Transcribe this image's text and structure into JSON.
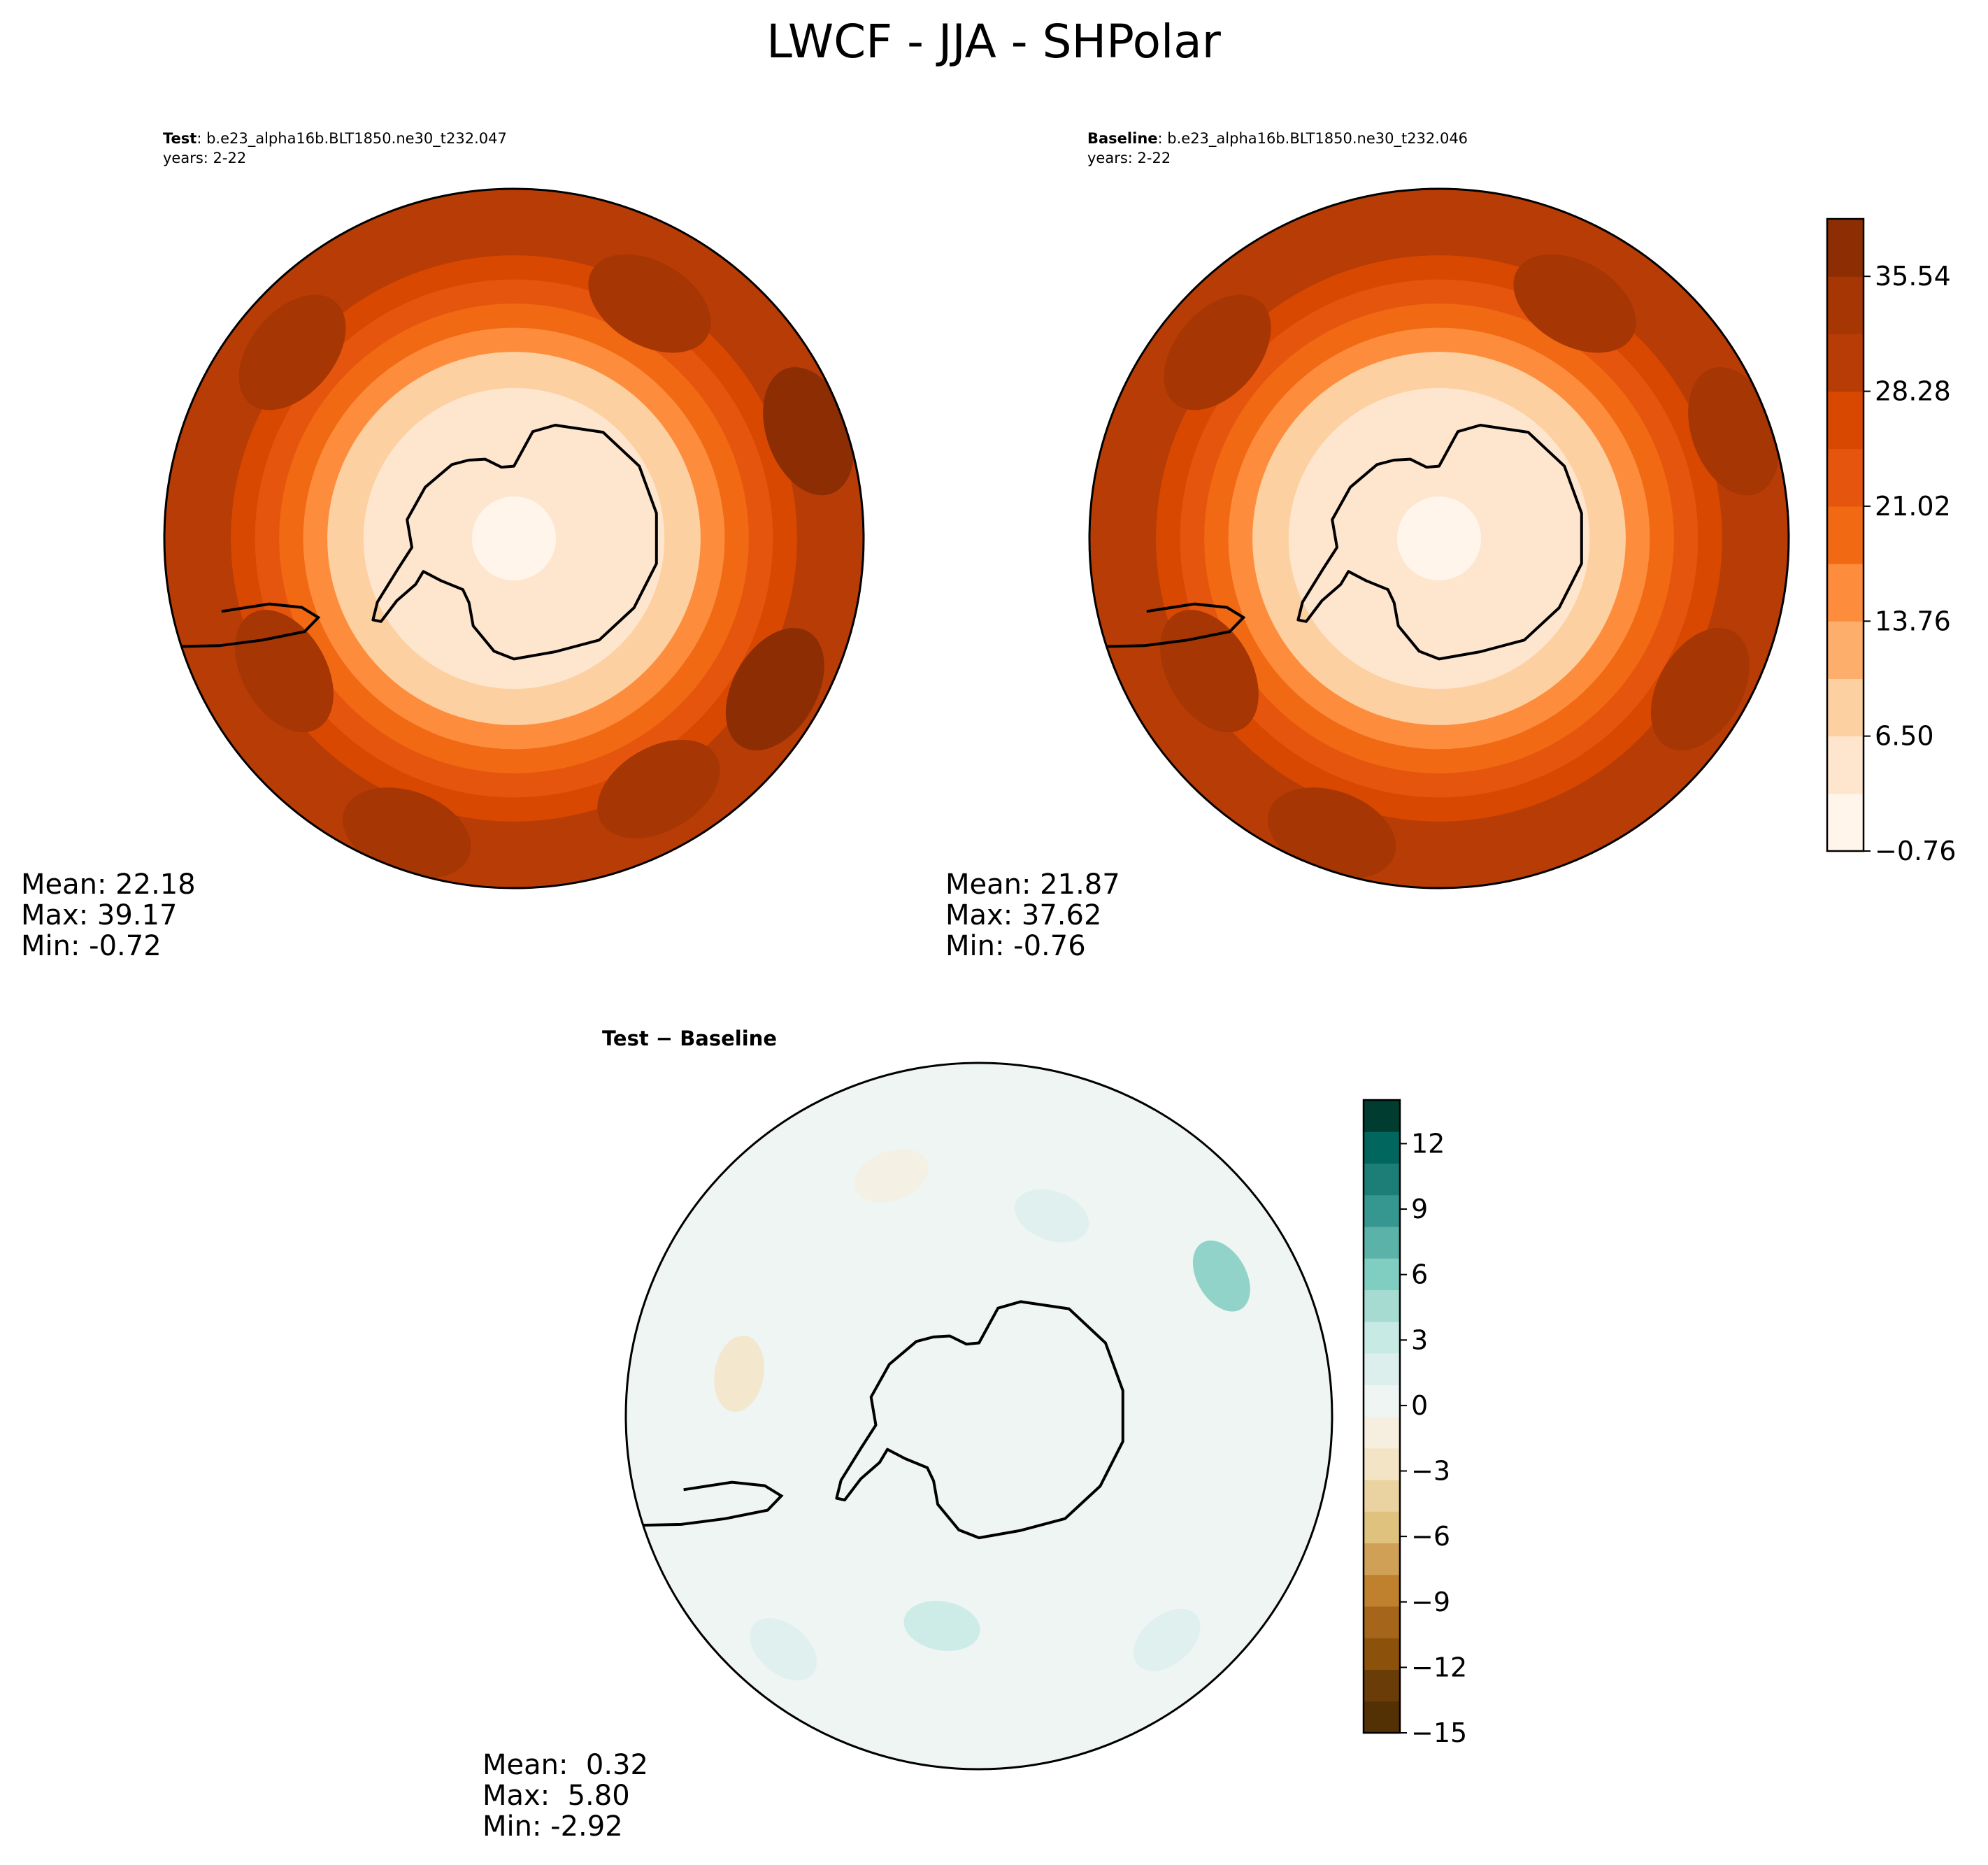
{
  "title": "LWCF - JJA - SHPolar",
  "chart_data": [
    {
      "type": "heatmap",
      "projection": "south-polar-stereographic",
      "panel": "test",
      "title_bold": "Test",
      "title_rest": ": b.e23_alpha16b.BLT1850.ne30_t232.047",
      "years": "years: 2-22",
      "stats": {
        "mean": "Mean: 22.18",
        "max": "Max: 39.17",
        "min": "Min: -0.72"
      },
      "zones": [
        {
          "lat": -90,
          "value": 1
        },
        {
          "lat": -80,
          "value": 3
        },
        {
          "lat": -72,
          "value": 6
        },
        {
          "lat": -66,
          "value": 10
        },
        {
          "lat": -62,
          "value": 14
        },
        {
          "lat": -58,
          "value": 18
        },
        {
          "lat": -54,
          "value": 23
        },
        {
          "lat": -50,
          "value": 27
        },
        {
          "lat": -45,
          "value": 30
        },
        {
          "lat": -40,
          "value": 31
        },
        {
          "lat": -35,
          "value": 31
        }
      ],
      "blobs": [
        {
          "lon": 60,
          "lat": -40,
          "value": 36
        },
        {
          "lon": -20,
          "lat": -38,
          "value": 35
        },
        {
          "lon": 150,
          "lat": -45,
          "value": 34
        },
        {
          "lon": -130,
          "lat": -42,
          "value": 33
        },
        {
          "lon": 110,
          "lat": -38,
          "value": 38
        },
        {
          "lon": -60,
          "lat": -46,
          "value": 34
        },
        {
          "lon": 30,
          "lat": -42,
          "value": 33
        }
      ]
    },
    {
      "type": "heatmap",
      "projection": "south-polar-stereographic",
      "panel": "baseline",
      "title_bold": "Baseline",
      "title_rest": ": b.e23_alpha16b.BLT1850.ne30_t232.046",
      "years": "years: 2-22",
      "stats": {
        "mean": "Mean: 21.87",
        "max": "Max: 37.62",
        "min": "Min: -0.76"
      },
      "zones": [
        {
          "lat": -90,
          "value": 1
        },
        {
          "lat": -80,
          "value": 3
        },
        {
          "lat": -72,
          "value": 6
        },
        {
          "lat": -66,
          "value": 10
        },
        {
          "lat": -62,
          "value": 14
        },
        {
          "lat": -58,
          "value": 18
        },
        {
          "lat": -54,
          "value": 23
        },
        {
          "lat": -50,
          "value": 27
        },
        {
          "lat": -45,
          "value": 29
        },
        {
          "lat": -40,
          "value": 30
        },
        {
          "lat": -35,
          "value": 30
        }
      ],
      "blobs": [
        {
          "lon": 60,
          "lat": -40,
          "value": 34
        },
        {
          "lon": -20,
          "lat": -38,
          "value": 34
        },
        {
          "lon": 150,
          "lat": -45,
          "value": 33
        },
        {
          "lon": -130,
          "lat": -42,
          "value": 33
        },
        {
          "lon": 110,
          "lat": -38,
          "value": 35
        },
        {
          "lon": -60,
          "lat": -46,
          "value": 33
        }
      ]
    },
    {
      "type": "heatmap",
      "projection": "south-polar-stereographic",
      "panel": "diff",
      "title": "Test − Baseline",
      "stats": {
        "mean": "Mean:  0.32",
        "max": "Max:  5.80",
        "min": "Min: -2.92"
      },
      "background_value": 0.3,
      "blobs": [
        {
          "lon": 120,
          "lat": -44,
          "value": 5.5
        },
        {
          "lon": -10,
          "lat": -55,
          "value": 2.5
        },
        {
          "lon": 160,
          "lat": -55,
          "value": 2
        },
        {
          "lon": -100,
          "lat": -50,
          "value": -2.5
        },
        {
          "lon": 40,
          "lat": -42,
          "value": 2
        },
        {
          "lon": -160,
          "lat": -48,
          "value": -1.5
        },
        {
          "lon": -40,
          "lat": -40,
          "value": 1.5
        }
      ]
    }
  ],
  "colorbars": [
    {
      "name": "main",
      "ticks": [
        "−0.76",
        "6.50",
        "13.76",
        "21.02",
        "28.28",
        "35.54"
      ],
      "tick_values": [
        -0.76,
        6.5,
        13.76,
        21.02,
        28.28,
        35.54
      ],
      "min": -0.76,
      "max": 39.17,
      "colors": [
        "#fff5eb",
        "#fee6ce",
        "#fdd0a2",
        "#fdae6b",
        "#fd8d3c",
        "#f16913",
        "#e6550d",
        "#d94801",
        "#b83c06",
        "#a63603",
        "#8c2d04"
      ]
    },
    {
      "name": "diff",
      "ticks": [
        "−15",
        "−12",
        "−9",
        "−6",
        "−3",
        "0",
        "3",
        "6",
        "9",
        "12"
      ],
      "tick_values": [
        -15,
        -12,
        -9,
        -6,
        -3,
        0,
        3,
        6,
        9,
        12
      ],
      "min": -15,
      "max": 14,
      "colors": [
        "#543005",
        "#6a3d08",
        "#8c510a",
        "#a5661b",
        "#bf812d",
        "#cfa055",
        "#dfc27d",
        "#ead3a0",
        "#f3e4c5",
        "#f6efe0",
        "#eef5f3",
        "#dcefec",
        "#c7eae5",
        "#a6dbd2",
        "#80cdc1",
        "#5ab2a8",
        "#35978f",
        "#1c7e76",
        "#01665e",
        "#003c30"
      ]
    }
  ]
}
